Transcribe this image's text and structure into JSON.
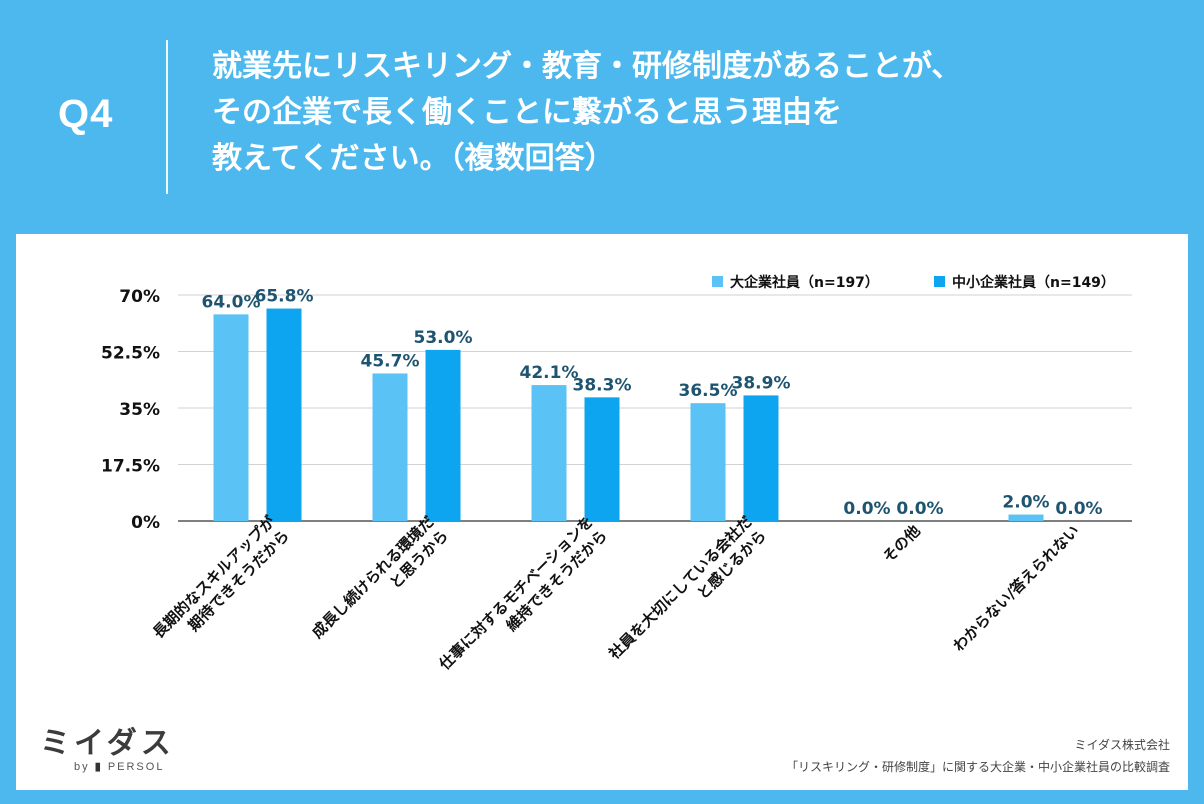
{
  "header": {
    "q_label": "Q4",
    "title_lines": [
      "就業先にリスキリング・教育・研修制度があることが、",
      "その企業で長く働くことに繋がると思う理由を",
      "教えてください。（複数回答）"
    ]
  },
  "colors": {
    "background": "#4db8ee",
    "series_large": "#5bc2f5",
    "series_small": "#0ea5f0",
    "value_label": "#1e5470",
    "axis_text": "#111111"
  },
  "chart_data": {
    "type": "bar",
    "title": "就業先にリスキリング・教育・研修制度があることが、その企業で長く働くことに繋がると思う理由を教えてください。（複数回答）",
    "categories": [
      [
        "長期的なスキルアップが",
        "期待できそうだから"
      ],
      [
        "成長し続けられる環境だ",
        "と思うから"
      ],
      [
        "仕事に対するモチベーションを",
        "維持できそうだから"
      ],
      [
        "社員を大切にしている会社だ",
        "と感じるから"
      ],
      [
        "その他"
      ],
      [
        "わからない/答えられない"
      ]
    ],
    "series": [
      {
        "name": "大企業社員（n=197）",
        "values": [
          64.0,
          45.7,
          42.1,
          36.5,
          0.0,
          2.0
        ],
        "labels": [
          "64.0%",
          "45.7%",
          "42.1%",
          "36.5%",
          "0.0%",
          "2.0%"
        ]
      },
      {
        "name": "中小企業社員（n=149）",
        "values": [
          65.8,
          53.0,
          38.3,
          38.9,
          0.0,
          0.0
        ],
        "labels": [
          "65.8%",
          "53.0%",
          "38.3%",
          "38.9%",
          "0.0%",
          "0.0%"
        ]
      }
    ],
    "yticks": [
      0,
      17.5,
      35,
      52.5,
      70
    ],
    "ytick_labels": [
      "0%",
      "17.5%",
      "35%",
      "52.5%",
      "70%"
    ],
    "ylim": [
      0,
      70
    ],
    "xlabel": "",
    "ylabel": "",
    "grid": true,
    "legend": "top-right"
  },
  "footer": {
    "logo_text": "ミイダス",
    "logo_by": "by",
    "logo_brand": "PERSOL",
    "company": "ミイダス株式会社",
    "survey": "「リスキリング・研修制度」に関する大企業・中小企業社員の比較調査"
  }
}
